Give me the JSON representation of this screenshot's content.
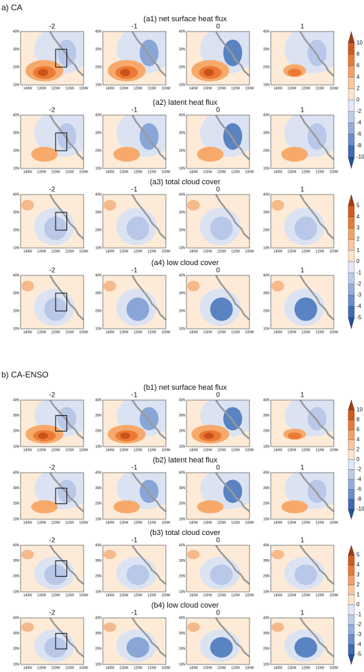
{
  "sections": [
    {
      "label": "a) CA",
      "rows": [
        {
          "title": "(a1) net surface heat flux"
        },
        {
          "title": "(a2) latent heat flux"
        },
        {
          "title": "(a3) total cloud cover"
        },
        {
          "title": "(a4) low cloud cover"
        }
      ]
    },
    {
      "label": "b) CA-ENSO",
      "rows": [
        {
          "title": "(b1) net surface heat flux"
        },
        {
          "title": "(b2) latent heat flux"
        },
        {
          "title": "(b3) total cloud cover"
        },
        {
          "title": "(b4) low cloud cover"
        }
      ]
    }
  ],
  "lags": [
    "-2",
    "-1",
    "0",
    "1"
  ],
  "lat_labels": [
    "40N",
    "30N",
    "20N",
    "10N"
  ],
  "lon_labels": [
    "140W",
    "130W",
    "120W",
    "110W",
    "100W"
  ],
  "colorbars": {
    "heat": [
      10,
      8,
      6,
      4,
      2,
      0,
      -2,
      -4,
      -6,
      -8,
      -10
    ],
    "cloud": [
      5,
      4,
      3,
      2,
      1,
      0,
      -1,
      -2,
      -3,
      -4,
      -5
    ]
  }
}
